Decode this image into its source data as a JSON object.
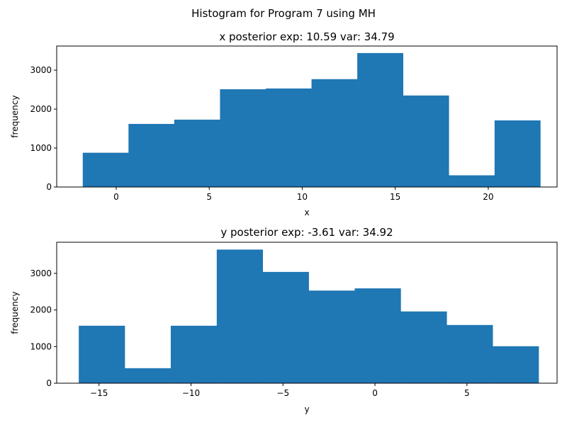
{
  "figure": {
    "suptitle": "Histogram for Program 7 using MH"
  },
  "chart_data": [
    {
      "type": "bar",
      "title": "x posterior exp: 10.59    var: 34.79",
      "xlabel": "x",
      "ylabel": "frequency",
      "xlim": [
        -3.2,
        23.7
      ],
      "ylim": [
        0,
        3620
      ],
      "xticks": [
        0,
        5,
        10,
        15,
        20
      ],
      "yticks": [
        0,
        1000,
        2000,
        3000
      ],
      "bin_edges": [
        -1.8,
        0.66,
        3.12,
        5.58,
        8.04,
        10.5,
        12.96,
        15.42,
        17.88,
        20.34,
        22.8
      ],
      "values": [
        880,
        1620,
        1730,
        2510,
        2530,
        2770,
        3440,
        2350,
        300,
        1710
      ],
      "color": "#1f77b4",
      "grid": false
    },
    {
      "type": "bar",
      "title": "y posterior exp: -3.61    var: 34.92",
      "xlabel": "y",
      "ylabel": "frequency",
      "xlim": [
        -17.3,
        9.9
      ],
      "ylim": [
        0,
        3850
      ],
      "xticks": [
        -15,
        -10,
        -5,
        0,
        5
      ],
      "xtick_labels": [
        "−15",
        "−10",
        "−5",
        "0",
        "5"
      ],
      "yticks": [
        0,
        1000,
        2000,
        3000
      ],
      "bin_edges": [
        -16.1,
        -13.6,
        -11.1,
        -8.6,
        -6.1,
        -3.6,
        -1.1,
        1.4,
        3.9,
        6.4,
        8.9
      ],
      "values": [
        1570,
        410,
        1570,
        3650,
        3040,
        2530,
        2590,
        1960,
        1590,
        1010
      ],
      "color": "#1f77b4",
      "grid": false
    }
  ]
}
